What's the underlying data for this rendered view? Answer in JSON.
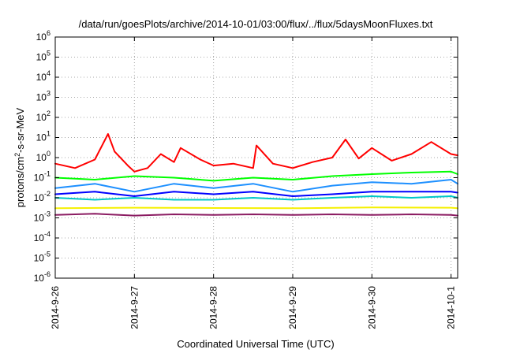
{
  "chart_data": {
    "type": "line",
    "title": "/data/run/goesPlots/archive/2014-10-01/03:00/flux/../flux/5daysMoonFluxes.txt",
    "xlabel": "Coordinated Universal Time (UTC)",
    "ylabel": "protons/cm²-s-sr-MeV",
    "ylabel_parts": {
      "before": "protons/cm",
      "sup": "2",
      "after": "-s-sr-MeV"
    },
    "y_scale": "log",
    "ylim": [
      1e-06,
      1000000.0
    ],
    "xlim": [
      "2014-09-26T00:00",
      "2014-10-01T02:00"
    ],
    "grid": true,
    "legend": "none",
    "x_ticks": [
      {
        "x": "2014-09-26T00:00",
        "label": "2014-9-26"
      },
      {
        "x": "2014-09-27T00:00",
        "label": "2014-9-27"
      },
      {
        "x": "2014-09-28T00:00",
        "label": "2014-9-28"
      },
      {
        "x": "2014-09-29T00:00",
        "label": "2014-9-29"
      },
      {
        "x": "2014-09-30T00:00",
        "label": "2014-9-30"
      },
      {
        "x": "2014-10-01T00:00",
        "label": "2014-10-1"
      }
    ],
    "y_ticks": [
      {
        "y": 1e-06,
        "base": "10",
        "exp": "-6"
      },
      {
        "y": 1e-05,
        "base": "10",
        "exp": "-5"
      },
      {
        "y": 0.0001,
        "base": "10",
        "exp": "-4"
      },
      {
        "y": 0.001,
        "base": "10",
        "exp": "-3"
      },
      {
        "y": 0.01,
        "base": "10",
        "exp": "-2"
      },
      {
        "y": 0.1,
        "base": "10",
        "exp": "-1"
      },
      {
        "y": 1,
        "base": "10",
        "exp": "0"
      },
      {
        "y": 10,
        "base": "10",
        "exp": "1"
      },
      {
        "y": 100,
        "base": "10",
        "exp": "2"
      },
      {
        "y": 1000,
        "base": "10",
        "exp": "3"
      },
      {
        "y": 10000,
        "base": "10",
        "exp": "4"
      },
      {
        "y": 100000,
        "base": "10",
        "exp": "5"
      },
      {
        "y": 1000000,
        "base": "10",
        "exp": "6"
      }
    ],
    "series": [
      {
        "color": "#ff0000",
        "x": [
          "2014-09-26T00:00",
          "2014-09-26T06:00",
          "2014-09-26T12:00",
          "2014-09-26T16:00",
          "2014-09-26T18:00",
          "2014-09-26T22:00",
          "2014-09-27T00:00",
          "2014-09-27T04:00",
          "2014-09-27T08:00",
          "2014-09-27T12:00",
          "2014-09-27T14:00",
          "2014-09-27T20:00",
          "2014-09-28T00:00",
          "2014-09-28T06:00",
          "2014-09-28T12:00",
          "2014-09-28T13:00",
          "2014-09-28T18:00",
          "2014-09-29T00:00",
          "2014-09-29T06:00",
          "2014-09-29T12:00",
          "2014-09-29T16:00",
          "2014-09-29T20:00",
          "2014-09-30T00:00",
          "2014-09-30T06:00",
          "2014-09-30T12:00",
          "2014-09-30T18:00",
          "2014-10-01T00:00",
          "2014-10-01T02:00"
        ],
        "values": [
          0.5,
          0.3,
          0.8,
          15,
          2,
          0.4,
          0.2,
          0.3,
          1.5,
          0.6,
          3,
          0.8,
          0.4,
          0.5,
          0.3,
          4,
          0.5,
          0.3,
          0.6,
          1,
          8,
          0.9,
          3,
          0.7,
          1.5,
          6,
          1.5,
          1.3
        ]
      },
      {
        "color": "#00ff00",
        "x": [
          "2014-09-26T00:00",
          "2014-09-26T12:00",
          "2014-09-27T00:00",
          "2014-09-27T12:00",
          "2014-09-28T00:00",
          "2014-09-28T12:00",
          "2014-09-29T00:00",
          "2014-09-29T12:00",
          "2014-09-30T00:00",
          "2014-09-30T12:00",
          "2014-10-01T00:00",
          "2014-10-01T02:00"
        ],
        "values": [
          0.1,
          0.08,
          0.12,
          0.1,
          0.07,
          0.1,
          0.08,
          0.12,
          0.15,
          0.18,
          0.2,
          0.15
        ]
      },
      {
        "color": "#1e90ff",
        "x": [
          "2014-09-26T00:00",
          "2014-09-26T12:00",
          "2014-09-27T00:00",
          "2014-09-27T12:00",
          "2014-09-28T00:00",
          "2014-09-28T12:00",
          "2014-09-29T00:00",
          "2014-09-29T12:00",
          "2014-09-30T00:00",
          "2014-09-30T12:00",
          "2014-10-01T00:00",
          "2014-10-01T02:00"
        ],
        "values": [
          0.03,
          0.05,
          0.02,
          0.05,
          0.03,
          0.05,
          0.02,
          0.04,
          0.06,
          0.05,
          0.08,
          0.05
        ]
      },
      {
        "color": "#0000ff",
        "x": [
          "2014-09-26T00:00",
          "2014-09-26T12:00",
          "2014-09-27T00:00",
          "2014-09-27T12:00",
          "2014-09-28T00:00",
          "2014-09-28T12:00",
          "2014-09-29T00:00",
          "2014-09-29T12:00",
          "2014-09-30T00:00",
          "2014-09-30T12:00",
          "2014-10-01T00:00",
          "2014-10-01T02:00"
        ],
        "values": [
          0.015,
          0.02,
          0.012,
          0.02,
          0.015,
          0.02,
          0.012,
          0.015,
          0.02,
          0.02,
          0.02,
          0.018
        ]
      },
      {
        "color": "#00c8c8",
        "x": [
          "2014-09-26T00:00",
          "2014-09-26T12:00",
          "2014-09-27T00:00",
          "2014-09-27T12:00",
          "2014-09-28T00:00",
          "2014-09-28T12:00",
          "2014-09-29T00:00",
          "2014-09-29T12:00",
          "2014-09-30T00:00",
          "2014-09-30T12:00",
          "2014-10-01T00:00",
          "2014-10-01T02:00"
        ],
        "values": [
          0.01,
          0.008,
          0.01,
          0.008,
          0.008,
          0.01,
          0.008,
          0.01,
          0.012,
          0.01,
          0.012,
          0.01
        ]
      },
      {
        "color": "#f5f000",
        "x": [
          "2014-09-26T00:00",
          "2014-09-27T00:00",
          "2014-09-28T00:00",
          "2014-09-29T00:00",
          "2014-09-30T00:00",
          "2014-10-01T00:00",
          "2014-10-01T02:00"
        ],
        "values": [
          0.003,
          0.0032,
          0.0031,
          0.003,
          0.0033,
          0.0032,
          0.003
        ]
      },
      {
        "color": "#8b1c62",
        "x": [
          "2014-09-26T00:00",
          "2014-09-26T12:00",
          "2014-09-27T00:00",
          "2014-09-27T12:00",
          "2014-09-28T00:00",
          "2014-09-28T12:00",
          "2014-09-29T00:00",
          "2014-09-29T12:00",
          "2014-09-30T00:00",
          "2014-09-30T12:00",
          "2014-10-01T00:00",
          "2014-10-01T02:00"
        ],
        "values": [
          0.0014,
          0.0016,
          0.0013,
          0.0015,
          0.0014,
          0.0015,
          0.0014,
          0.0015,
          0.0014,
          0.0015,
          0.0014,
          0.0013
        ]
      }
    ]
  }
}
